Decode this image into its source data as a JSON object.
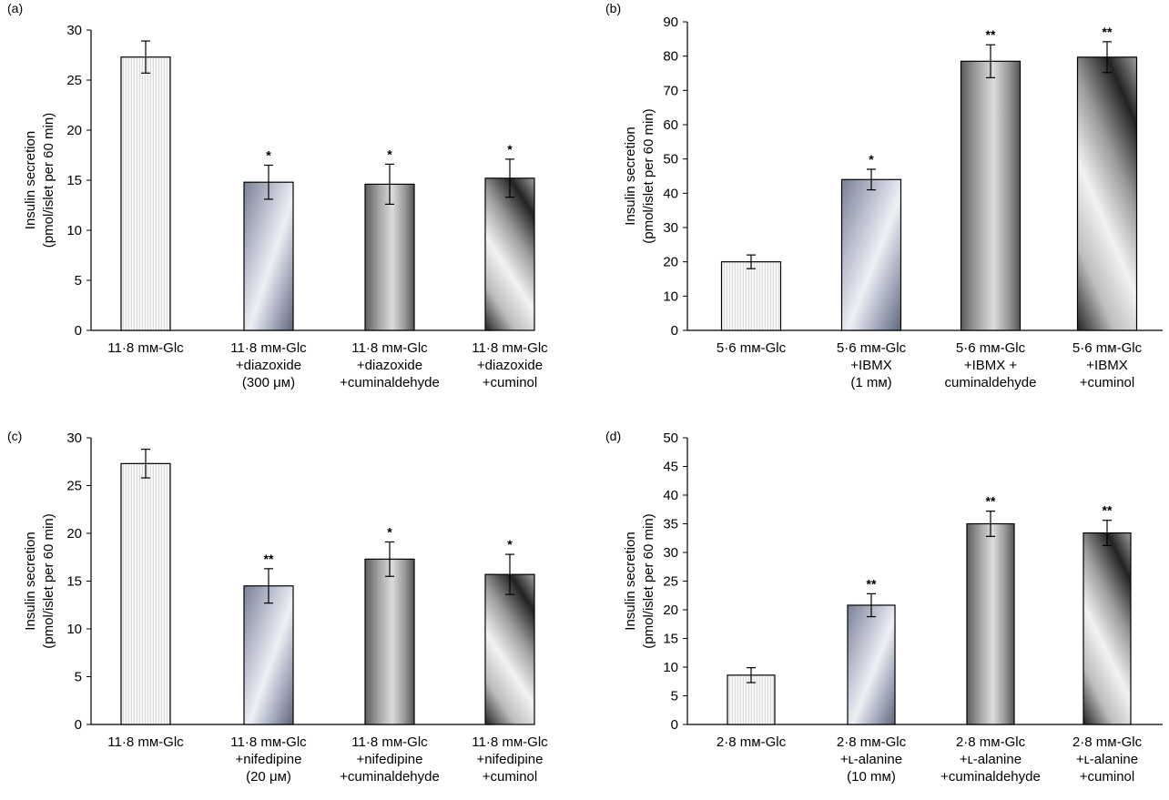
{
  "chart_data": [
    {
      "type": "bar",
      "panel_label": "(a)",
      "ylabel": [
        "Insulin secretion",
        "(pmol/islet per 60 min)"
      ],
      "ylim": [
        0,
        30
      ],
      "yticks": [
        0,
        5,
        10,
        15,
        20,
        25,
        30
      ],
      "categories": [
        [
          "11·8 mм-Glc"
        ],
        [
          "11·8 mм-Glc",
          "+diazoxide",
          "(300 μм)"
        ],
        [
          "11·8 mм-Glc",
          "+diazoxide",
          "+cuminaldehyde"
        ],
        [
          "11·8 mм-Glc",
          "+diazoxide",
          "+cuminol"
        ]
      ],
      "values": [
        27.3,
        14.8,
        14.6,
        15.2
      ],
      "errors": [
        1.6,
        1.7,
        2.0,
        1.9
      ],
      "significance": [
        "",
        "*",
        "*",
        "*"
      ],
      "grid": false,
      "legend": "none"
    },
    {
      "type": "bar",
      "panel_label": "(b)",
      "ylabel": [
        "Insulin secretion",
        "(pmol/islet per 60 min)"
      ],
      "ylim": [
        0,
        90
      ],
      "yticks": [
        0,
        10,
        20,
        30,
        40,
        50,
        60,
        70,
        80,
        90
      ],
      "categories": [
        [
          "5·6 mм-Glc"
        ],
        [
          "5·6 mм-Glc",
          "+IBMX",
          "(1 mм)"
        ],
        [
          "5·6 mм-Glc",
          "+IBMX +",
          "cuminaldehyde"
        ],
        [
          "5·6 mм-Glc",
          "+IBMX",
          "+cuminol"
        ]
      ],
      "values": [
        20,
        44,
        78.5,
        79.7
      ],
      "errors": [
        2.0,
        3.0,
        4.8,
        4.5
      ],
      "significance": [
        "",
        "*",
        "**",
        "**"
      ],
      "grid": false,
      "legend": "none"
    },
    {
      "type": "bar",
      "panel_label": "(c)",
      "ylabel": [
        "Insulin secretion",
        "(pmol/islet per 60 min)"
      ],
      "ylim": [
        0,
        30
      ],
      "yticks": [
        0,
        5,
        10,
        15,
        20,
        25,
        30
      ],
      "categories": [
        [
          "11·8 mм-Glc"
        ],
        [
          "11·8 mм-Glc",
          "+nifedipine",
          "(20 μм)"
        ],
        [
          "11·8 mм-Glc",
          "+nifedipine",
          "+cuminaldehyde"
        ],
        [
          "11·8 mм-Glc",
          "+nifedipine",
          "+cuminol"
        ]
      ],
      "values": [
        27.3,
        14.5,
        17.3,
        15.7
      ],
      "errors": [
        1.5,
        1.8,
        1.8,
        2.1
      ],
      "significance": [
        "",
        "**",
        "*",
        "*"
      ],
      "grid": false,
      "legend": "none"
    },
    {
      "type": "bar",
      "panel_label": "(d)",
      "ylabel": [
        "Insulin secretion",
        "(pmol/islet per 60 min)"
      ],
      "ylim": [
        0,
        50
      ],
      "yticks": [
        0,
        5,
        10,
        15,
        20,
        25,
        30,
        35,
        40,
        45,
        50
      ],
      "categories": [
        [
          "2·8 mм-Glc"
        ],
        [
          "2·8 mм-Glc",
          "+ʟ-alanine",
          "(10 mм)"
        ],
        [
          "2·8 mм-Glc",
          "+ʟ-alanine",
          "+cuminaldehyde"
        ],
        [
          "2·8 mм-Glc",
          "+ʟ-alanine",
          "+cuminol"
        ]
      ],
      "values": [
        8.6,
        20.8,
        35.0,
        33.4
      ],
      "errors": [
        1.3,
        2.0,
        2.2,
        2.2
      ],
      "significance": [
        "",
        "**",
        "**",
        "**"
      ],
      "grid": false,
      "legend": "none"
    }
  ]
}
